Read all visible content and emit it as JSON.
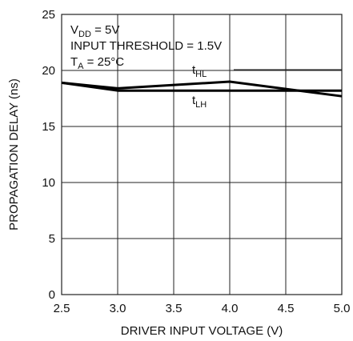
{
  "chart_data": {
    "type": "line",
    "xlabel": "DRIVER INPUT VOLTAGE (V)",
    "ylabel": "PROPAGATION DELAY (ns)",
    "xlim": [
      2.5,
      5.0
    ],
    "ylim": [
      0,
      25
    ],
    "xticks": [
      "2.5",
      "3.0",
      "3.5",
      "4.0",
      "4.5",
      "5.0"
    ],
    "xtick_values": [
      2.5,
      3.0,
      3.5,
      4.0,
      4.5,
      5.0
    ],
    "yticks": [
      "0",
      "5",
      "10",
      "15",
      "20",
      "25"
    ],
    "ytick_values": [
      0,
      5,
      10,
      15,
      20,
      25
    ],
    "grid": true,
    "series": [
      {
        "name_main": "t",
        "name_sub": "HL",
        "x": [
          2.5,
          3.0,
          4.0,
          5.0
        ],
        "y": [
          18.9,
          18.4,
          19.0,
          17.7
        ]
      },
      {
        "name_main": "t",
        "name_sub": "LH",
        "x": [
          2.5,
          3.0,
          4.0,
          5.0
        ],
        "y": [
          18.9,
          18.2,
          18.2,
          18.2
        ]
      }
    ],
    "annotations": [
      {
        "main": "V",
        "sub": "DD",
        "rest": " = 5V"
      },
      {
        "main": "INPUT THRESHOLD = 1.5V"
      },
      {
        "main": "T",
        "sub": "A",
        "rest": " = 25°C"
      }
    ]
  }
}
